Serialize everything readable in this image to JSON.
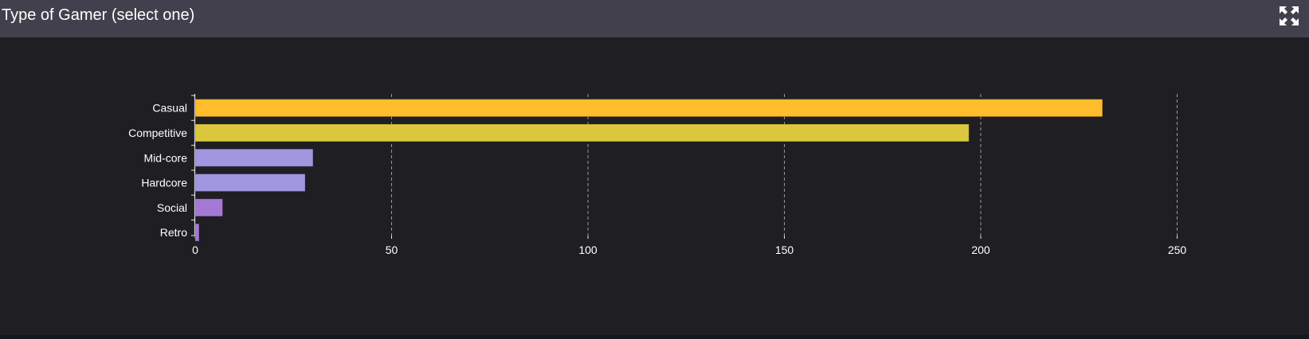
{
  "header": {
    "title": "Type of Gamer (select one)",
    "expand_icon": "expand-arrows-icon"
  },
  "colors": {
    "header_bg": "#42404c",
    "panel_bg": "#1f1e23",
    "axis": "#e6e6e6",
    "grid": "#9a9a9a",
    "text": "#ffffff"
  },
  "chart_data": {
    "type": "bar",
    "orientation": "horizontal",
    "categories": [
      "Casual",
      "Competitive",
      "Mid-core",
      "Hardcore",
      "Social",
      "Retro"
    ],
    "values": [
      231,
      197,
      30,
      28,
      7,
      1
    ],
    "bar_colors": [
      "#ffbc2c",
      "#dbc73e",
      "#a196e0",
      "#a196e0",
      "#a479d6",
      "#a479d6"
    ],
    "x_ticks": [
      0,
      50,
      100,
      150,
      200,
      250
    ],
    "xlim": [
      0,
      250
    ],
    "grid": "vertical dashed",
    "title": "",
    "xlabel": "",
    "ylabel": ""
  }
}
